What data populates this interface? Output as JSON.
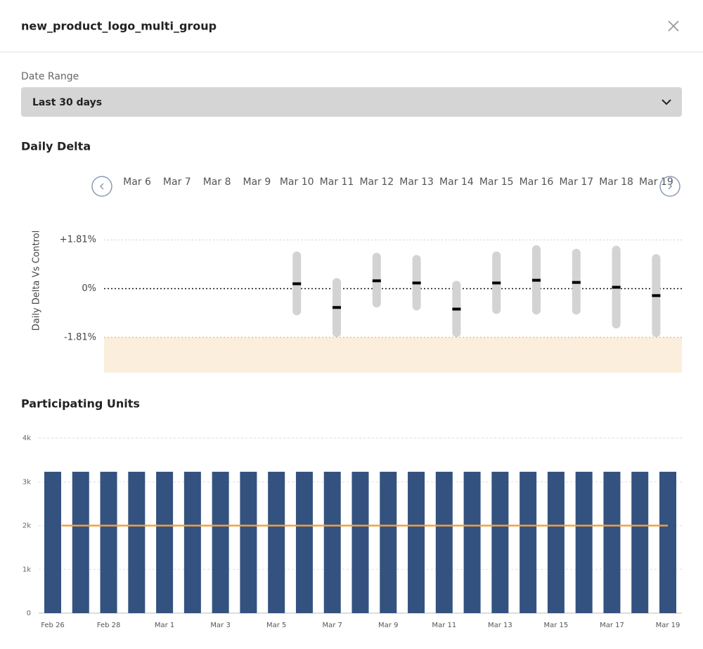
{
  "header": {
    "title": "new_product_logo_multi_group"
  },
  "date_range": {
    "label": "Date Range",
    "value": "Last 30 days"
  },
  "daily_delta": {
    "title": "Daily Delta",
    "chart": {
      "type": "interval",
      "y_label": "Daily Delta Vs Control",
      "categories": [
        "Mar 6",
        "Mar 7",
        "Mar 8",
        "Mar 9",
        "Mar 10",
        "Mar 11",
        "Mar 12",
        "Mar 13",
        "Mar 14",
        "Mar 15",
        "Mar 16",
        "Mar 17",
        "Mar 18",
        "Mar 19"
      ],
      "estimate": [
        null,
        null,
        null,
        null,
        0.18,
        -0.7,
        0.29,
        0.21,
        -0.76,
        0.21,
        0.31,
        0.23,
        0.05,
        -0.26
      ],
      "lower": [
        null,
        null,
        null,
        null,
        -0.99,
        -1.8,
        -0.7,
        -0.81,
        -1.8,
        -0.94,
        -0.96,
        -0.96,
        -1.48,
        -1.8
      ],
      "upper": [
        null,
        null,
        null,
        null,
        1.38,
        0.39,
        1.33,
        1.25,
        0.29,
        1.38,
        1.61,
        1.48,
        1.59,
        1.28
      ],
      "interval_color": "#d3d3d3",
      "estimate_color": "#000000",
      "threshold_color": "#f0a050",
      "threshold_fill": "#fbeedd",
      "ylim": [
        -3.12,
        2.1
      ],
      "yticks": [
        {
          "value": 1.81,
          "label": "+1.81%"
        },
        {
          "value": 0,
          "label": "0%"
        },
        {
          "value": -1.81,
          "label": "-1.81%"
        }
      ]
    }
  },
  "participating_units": {
    "title": "Participating Units",
    "chart": {
      "type": "bar",
      "categories": [
        "Feb 26",
        null,
        "Feb 28",
        null,
        "Mar 1",
        null,
        "Mar 3",
        null,
        "Mar 5",
        null,
        "Mar 7",
        null,
        "Mar 9",
        null,
        "Mar 11",
        null,
        "Mar 13",
        null,
        "Mar 15",
        null,
        "Mar 17",
        null,
        "Mar 19"
      ],
      "values": [
        3230,
        3230,
        3230,
        3230,
        3230,
        3230,
        3230,
        3230,
        3230,
        3230,
        3230,
        3230,
        3230,
        3230,
        3230,
        3230,
        3230,
        3230,
        3230,
        3230,
        3230,
        3230,
        3230
      ],
      "color": "#34527f",
      "reference_line": 2000,
      "reference_color": "#f0a040",
      "ylim": [
        0,
        4000
      ],
      "yticks": [
        0,
        {
          "value": 1000,
          "label": "1k"
        },
        {
          "value": 2000,
          "label": "2k"
        },
        {
          "value": 3000,
          "label": "3k"
        },
        {
          "value": 4000,
          "label": "4k"
        }
      ],
      "grid": true
    }
  }
}
